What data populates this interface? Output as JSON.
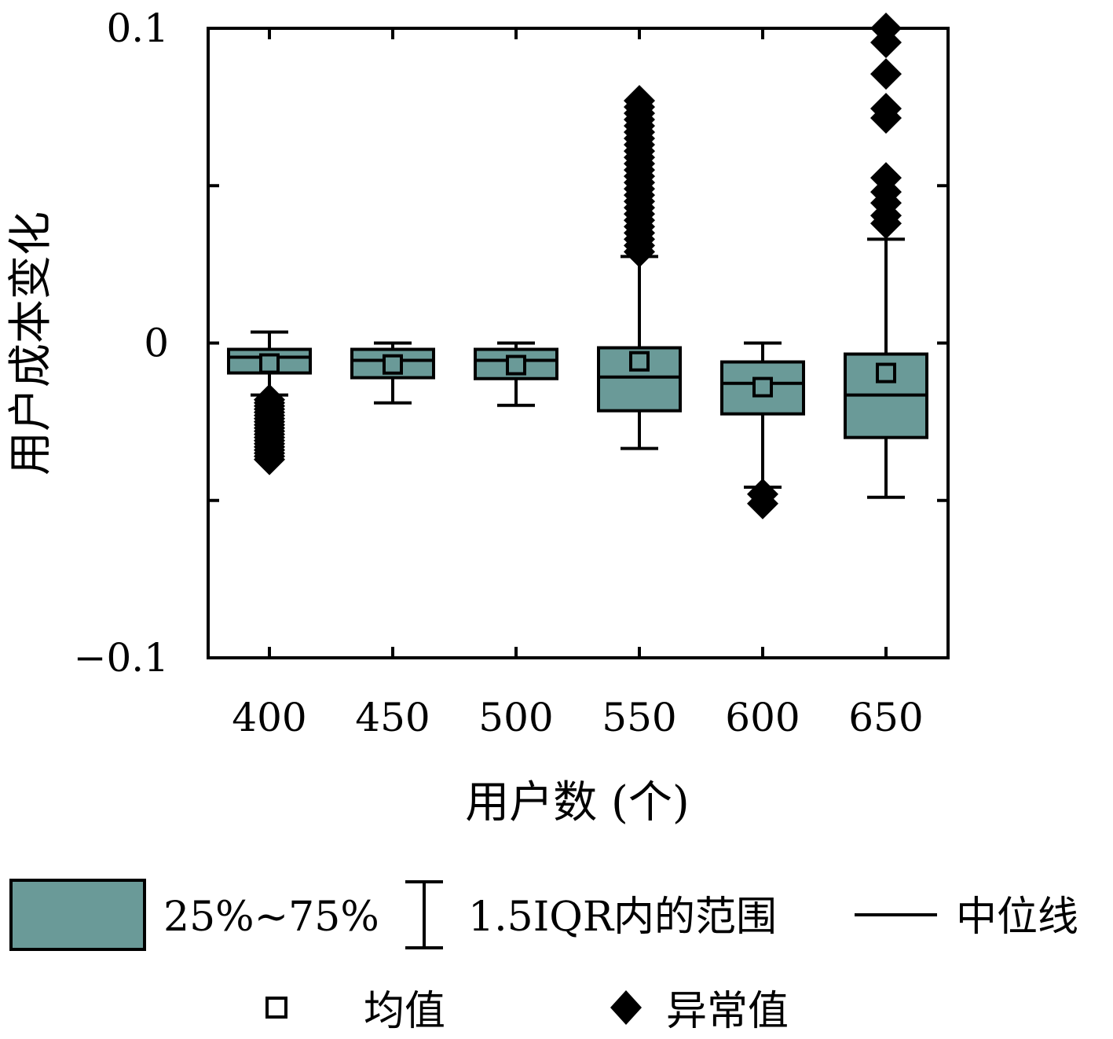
{
  "chart_data": {
    "type": "box",
    "xlabel": "用户数 (个)",
    "ylabel": "用户成本变化",
    "ylim": [
      -0.1,
      0.1
    ],
    "yticks": [
      0.1,
      0,
      -0.1
    ],
    "ytick_labels": [
      "0.1",
      "0",
      "−0.1"
    ],
    "categories": [
      "400",
      "450",
      "500",
      "550",
      "600",
      "650"
    ],
    "grid": false,
    "legend_position": "bottom",
    "colors": {
      "box_fill": "#6a9a98",
      "stroke": "#000000"
    },
    "boxes": [
      {
        "category": "400",
        "q1": -0.0095,
        "median": -0.0045,
        "q3": -0.002,
        "whisker_low": -0.0165,
        "whisker_high": 0.0035,
        "mean": -0.0065,
        "outliers": [
          -0.018,
          -0.019,
          -0.02,
          -0.021,
          -0.022,
          -0.023,
          -0.024,
          -0.025,
          -0.026,
          -0.027,
          -0.028,
          -0.029,
          -0.03,
          -0.031,
          -0.032,
          -0.033,
          -0.034,
          -0.035,
          -0.036,
          -0.037
        ]
      },
      {
        "category": "450",
        "q1": -0.011,
        "median": -0.0055,
        "q3": -0.002,
        "whisker_low": -0.019,
        "whisker_high": 0.0,
        "mean": -0.0068,
        "outliers": []
      },
      {
        "category": "500",
        "q1": -0.0113,
        "median": -0.0055,
        "q3": -0.002,
        "whisker_low": -0.0198,
        "whisker_high": 0.0,
        "mean": -0.007,
        "outliers": []
      },
      {
        "category": "550",
        "q1": -0.0215,
        "median": -0.0108,
        "q3": -0.0015,
        "whisker_low": -0.0335,
        "whisker_high": 0.0275,
        "mean": -0.0058,
        "outliers": [
          0.029,
          0.031,
          0.033,
          0.035,
          0.037,
          0.039,
          0.041,
          0.043,
          0.045,
          0.047,
          0.049,
          0.051,
          0.053,
          0.055,
          0.057,
          0.059,
          0.061,
          0.063,
          0.065,
          0.067,
          0.069,
          0.071,
          0.073,
          0.075,
          0.077
        ]
      },
      {
        "category": "600",
        "q1": -0.0225,
        "median": -0.0128,
        "q3": -0.006,
        "whisker_low": -0.0458,
        "whisker_high": 0.0,
        "mean": -0.014,
        "outliers": [
          -0.048,
          -0.051
        ]
      },
      {
        "category": "650",
        "q1": -0.03,
        "median": -0.0165,
        "q3": -0.0035,
        "whisker_low": -0.049,
        "whisker_high": 0.033,
        "mean": -0.0095,
        "outliers": [
          0.038,
          0.0405,
          0.0445,
          0.048,
          0.0525,
          0.0715,
          0.0745,
          0.0855,
          0.0955,
          0.1
        ]
      }
    ]
  },
  "legend": {
    "box_label": "25%~75%",
    "whisker_label": "1.5IQR内的范围",
    "median_label": "中位线",
    "mean_label": "均值",
    "outlier_label": "异常值"
  }
}
